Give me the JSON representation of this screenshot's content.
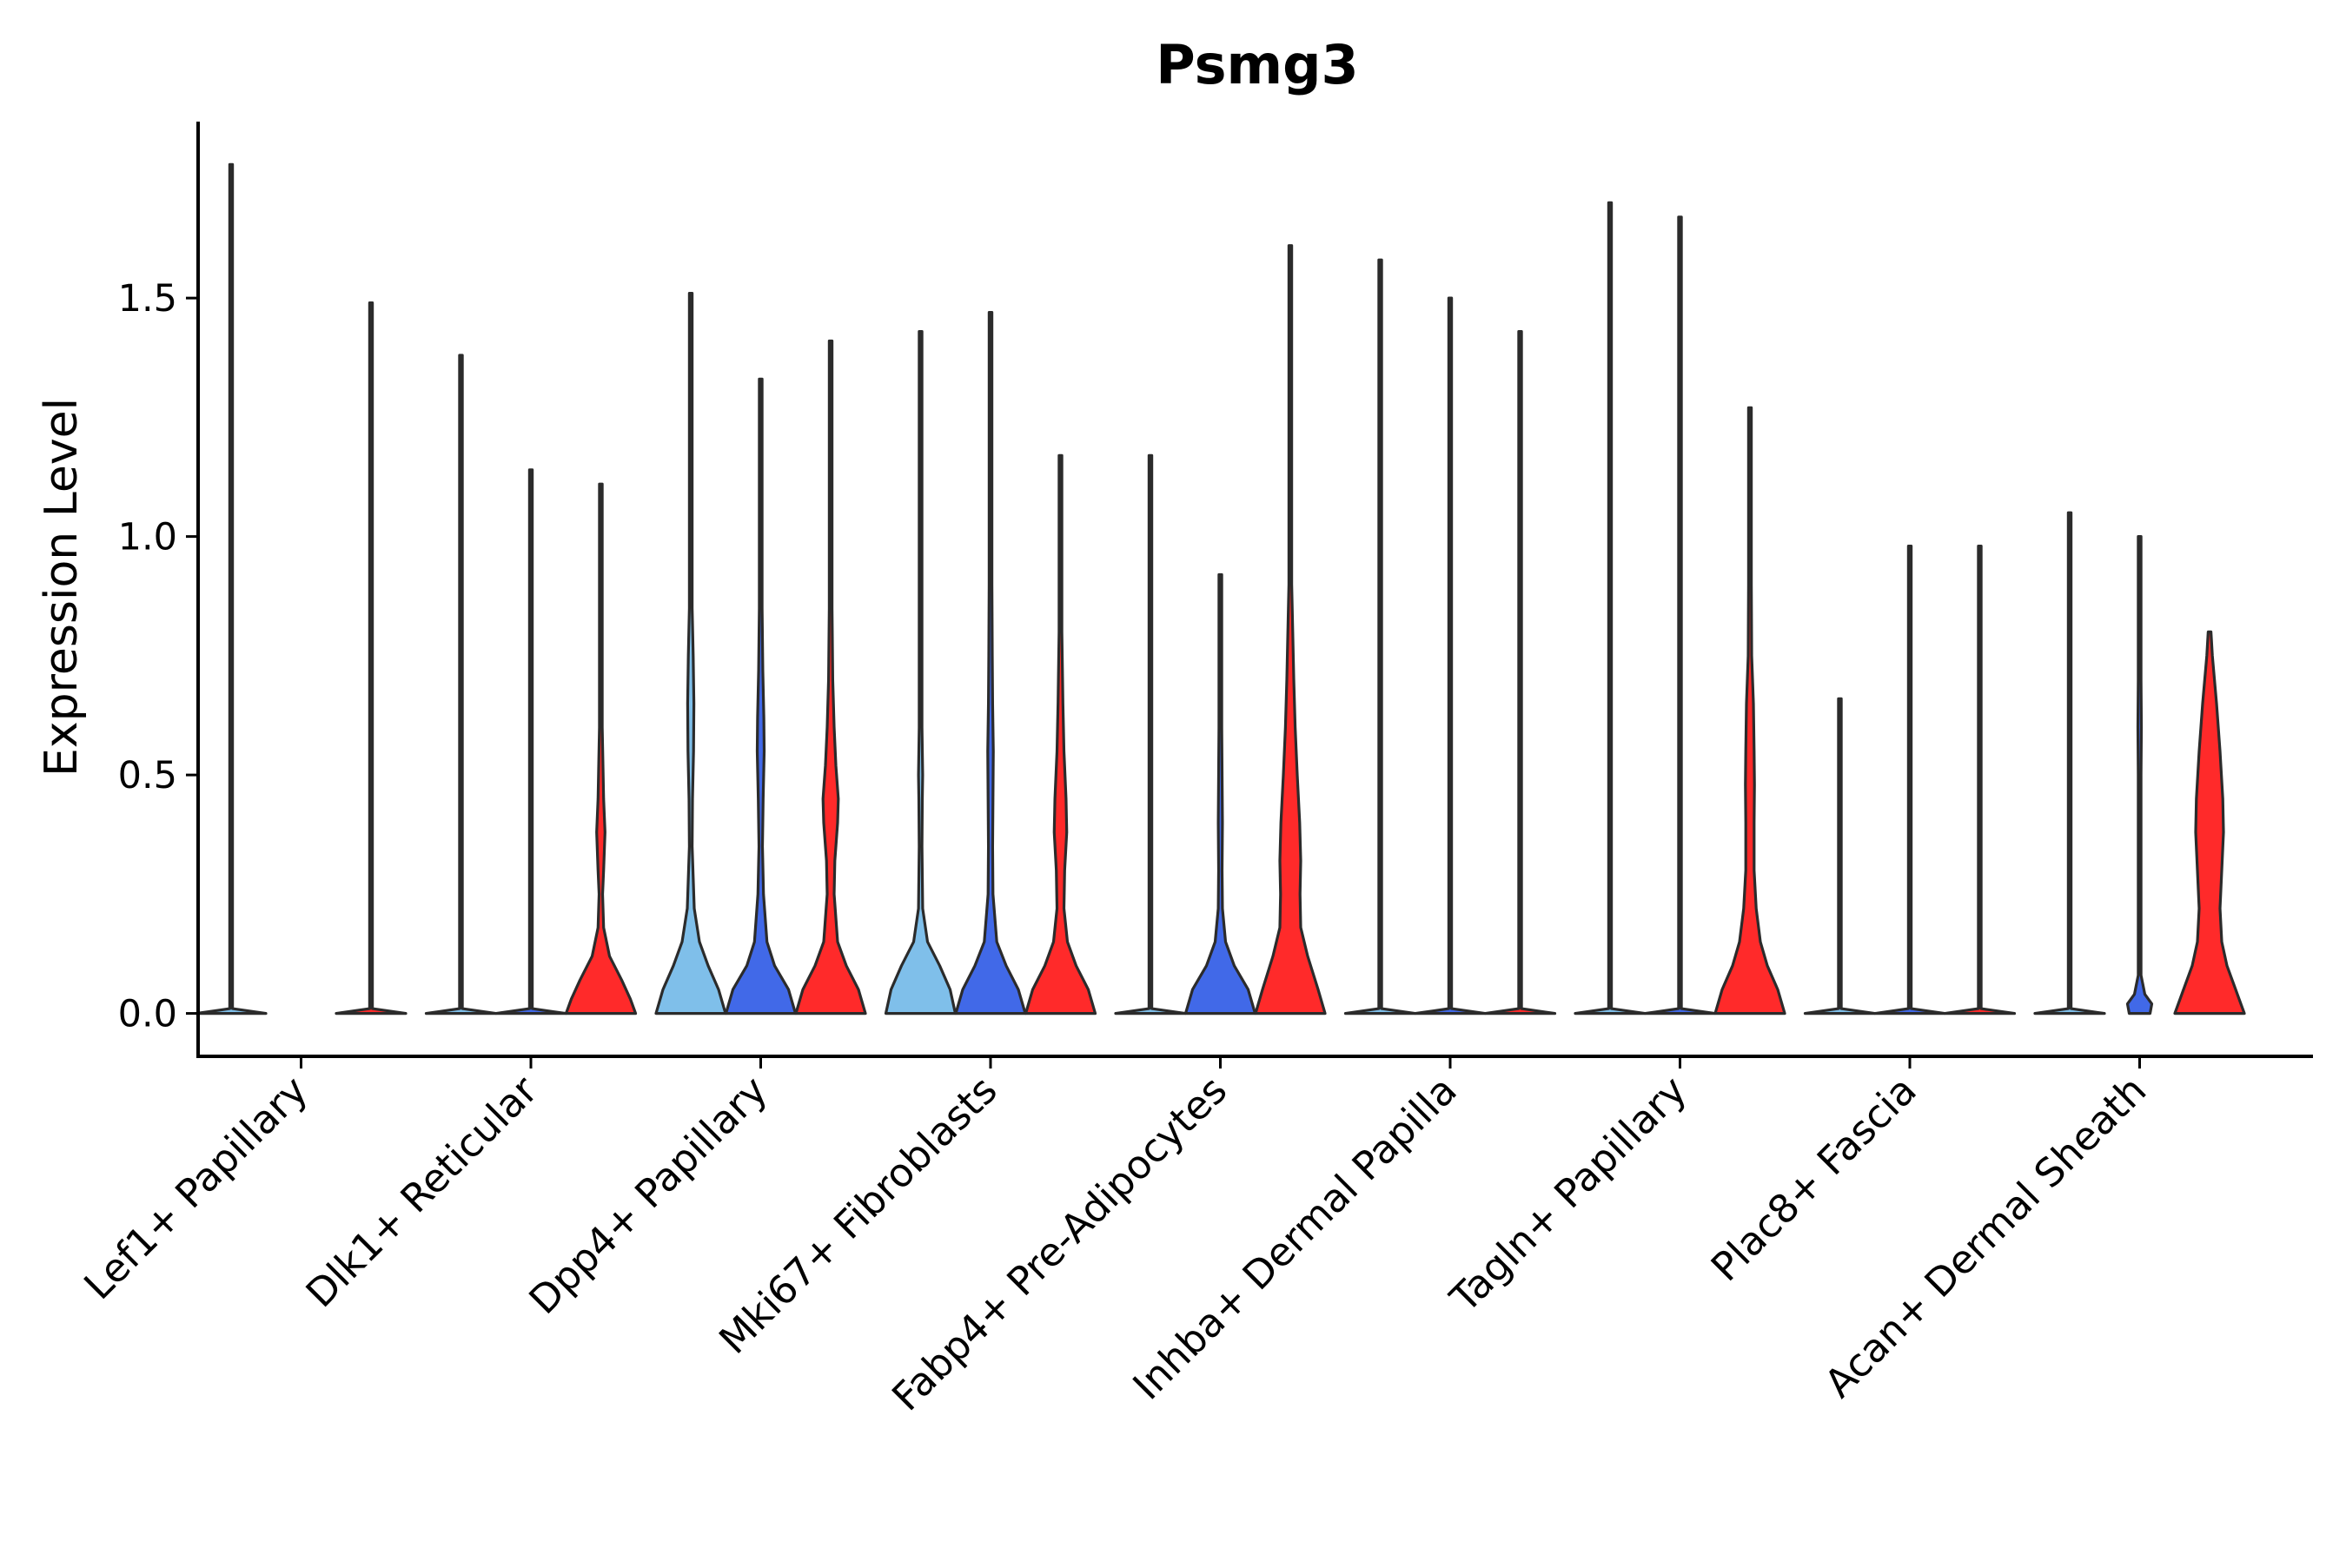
{
  "chart_data": {
    "type": "violin",
    "title": "Psmg3",
    "xlabel": "",
    "ylabel": "Expression Level",
    "ylim": [
      -0.09,
      1.87
    ],
    "yticks": [
      0.0,
      0.5,
      1.0,
      1.5
    ],
    "ytick_labels": [
      "0.0",
      "0.5",
      "1.0",
      "1.5"
    ],
    "grid": false,
    "legend": "none",
    "series_colors": [
      "#7fbfea",
      "#4169e8",
      "#ff2a2a"
    ],
    "categories": [
      {
        "label": "Lef1+ Papillary",
        "violins": [
          {
            "series": 0,
            "max": 1.78,
            "profile": [
              [
                0,
                1.0
              ],
              [
                0.01,
                0.02
              ],
              [
                0.05,
                0.0
              ]
            ]
          },
          {
            "series": 2,
            "max": 1.49,
            "profile": [
              [
                0,
                1.0
              ],
              [
                0.01,
                0.02
              ],
              [
                0.05,
                0.0
              ]
            ]
          }
        ]
      },
      {
        "label": "Dlk1+ Reticular",
        "violins": [
          {
            "series": 0,
            "max": 1.38,
            "profile": [
              [
                0,
                1.0
              ],
              [
                0.01,
                0.02
              ],
              [
                0.05,
                0.0
              ]
            ]
          },
          {
            "series": 1,
            "max": 1.14,
            "profile": [
              [
                0,
                1.0
              ],
              [
                0.01,
                0.02
              ],
              [
                0.05,
                0.0
              ]
            ]
          },
          {
            "series": 2,
            "max": 1.11,
            "profile": [
              [
                0,
                1.0
              ],
              [
                0.03,
                0.85
              ],
              [
                0.07,
                0.6
              ],
              [
                0.12,
                0.25
              ],
              [
                0.18,
                0.08
              ],
              [
                0.25,
                0.05
              ],
              [
                0.3,
                0.08
              ],
              [
                0.38,
                0.12
              ],
              [
                0.45,
                0.08
              ],
              [
                0.6,
                0.04
              ],
              [
                0.8,
                0.03
              ],
              [
                1.0,
                0.02
              ],
              [
                1.11,
                0.0
              ]
            ]
          }
        ]
      },
      {
        "label": "Dpp4+ Papillary",
        "violins": [
          {
            "series": 0,
            "max": 1.51,
            "profile": [
              [
                0,
                1.0
              ],
              [
                0.05,
                0.8
              ],
              [
                0.1,
                0.5
              ],
              [
                0.15,
                0.25
              ],
              [
                0.22,
                0.1
              ],
              [
                0.35,
                0.04
              ],
              [
                0.45,
                0.05
              ],
              [
                0.55,
                0.08
              ],
              [
                0.65,
                0.09
              ],
              [
                0.75,
                0.07
              ],
              [
                0.85,
                0.04
              ],
              [
                1.0,
                0.02
              ],
              [
                1.51,
                0.0
              ]
            ]
          },
          {
            "series": 1,
            "max": 1.33,
            "profile": [
              [
                0,
                1.0
              ],
              [
                0.05,
                0.8
              ],
              [
                0.1,
                0.4
              ],
              [
                0.15,
                0.18
              ],
              [
                0.25,
                0.08
              ],
              [
                0.35,
                0.05
              ],
              [
                0.45,
                0.07
              ],
              [
                0.55,
                0.1
              ],
              [
                0.62,
                0.09
              ],
              [
                0.72,
                0.06
              ],
              [
                0.85,
                0.03
              ],
              [
                1.0,
                0.02
              ],
              [
                1.33,
                0.0
              ]
            ]
          },
          {
            "series": 2,
            "max": 1.41,
            "profile": [
              [
                0,
                1.0
              ],
              [
                0.05,
                0.8
              ],
              [
                0.1,
                0.45
              ],
              [
                0.15,
                0.2
              ],
              [
                0.25,
                0.1
              ],
              [
                0.32,
                0.12
              ],
              [
                0.4,
                0.2
              ],
              [
                0.45,
                0.22
              ],
              [
                0.52,
                0.15
              ],
              [
                0.6,
                0.1
              ],
              [
                0.7,
                0.06
              ],
              [
                0.85,
                0.03
              ],
              [
                1.0,
                0.02
              ],
              [
                1.41,
                0.0
              ]
            ]
          }
        ]
      },
      {
        "label": "Mki67+ Fibroblasts",
        "violins": [
          {
            "series": 0,
            "max": 1.43,
            "profile": [
              [
                0,
                1.0
              ],
              [
                0.05,
                0.85
              ],
              [
                0.1,
                0.55
              ],
              [
                0.15,
                0.2
              ],
              [
                0.22,
                0.06
              ],
              [
                0.35,
                0.04
              ],
              [
                0.45,
                0.05
              ],
              [
                0.5,
                0.06
              ],
              [
                0.6,
                0.04
              ],
              [
                0.8,
                0.03
              ],
              [
                1.0,
                0.02
              ],
              [
                1.43,
                0.0
              ]
            ]
          },
          {
            "series": 1,
            "max": 1.47,
            "profile": [
              [
                0,
                1.0
              ],
              [
                0.05,
                0.8
              ],
              [
                0.1,
                0.45
              ],
              [
                0.15,
                0.18
              ],
              [
                0.25,
                0.07
              ],
              [
                0.35,
                0.06
              ],
              [
                0.45,
                0.07
              ],
              [
                0.55,
                0.08
              ],
              [
                0.65,
                0.06
              ],
              [
                0.75,
                0.05
              ],
              [
                0.9,
                0.03
              ],
              [
                1.0,
                0.02
              ],
              [
                1.47,
                0.0
              ]
            ]
          },
          {
            "series": 2,
            "max": 1.17,
            "profile": [
              [
                0,
                1.0
              ],
              [
                0.05,
                0.8
              ],
              [
                0.1,
                0.45
              ],
              [
                0.15,
                0.2
              ],
              [
                0.22,
                0.1
              ],
              [
                0.3,
                0.12
              ],
              [
                0.38,
                0.18
              ],
              [
                0.45,
                0.16
              ],
              [
                0.55,
                0.1
              ],
              [
                0.65,
                0.07
              ],
              [
                0.8,
                0.04
              ],
              [
                1.0,
                0.02
              ],
              [
                1.17,
                0.0
              ]
            ]
          }
        ]
      },
      {
        "label": "Fabp4+ Pre-Adipocytes",
        "violins": [
          {
            "series": 0,
            "max": 1.17,
            "profile": [
              [
                0,
                1.0
              ],
              [
                0.01,
                0.02
              ],
              [
                0.05,
                0.0
              ]
            ]
          },
          {
            "series": 1,
            "max": 0.92,
            "profile": [
              [
                0,
                1.0
              ],
              [
                0.05,
                0.8
              ],
              [
                0.1,
                0.4
              ],
              [
                0.15,
                0.15
              ],
              [
                0.22,
                0.06
              ],
              [
                0.3,
                0.05
              ],
              [
                0.4,
                0.06
              ],
              [
                0.5,
                0.05
              ],
              [
                0.6,
                0.03
              ],
              [
                0.75,
                0.02
              ],
              [
                0.92,
                0.0
              ]
            ]
          },
          {
            "series": 2,
            "max": 1.61,
            "profile": [
              [
                0,
                1.0
              ],
              [
                0.05,
                0.8
              ],
              [
                0.12,
                0.5
              ],
              [
                0.18,
                0.3
              ],
              [
                0.25,
                0.28
              ],
              [
                0.32,
                0.3
              ],
              [
                0.4,
                0.27
              ],
              [
                0.5,
                0.2
              ],
              [
                0.6,
                0.14
              ],
              [
                0.7,
                0.1
              ],
              [
                0.8,
                0.07
              ],
              [
                0.9,
                0.04
              ],
              [
                1.0,
                0.02
              ],
              [
                1.61,
                0.0
              ]
            ]
          }
        ]
      },
      {
        "label": "Inhba+ Dermal Papilla",
        "violins": [
          {
            "series": 0,
            "max": 1.58,
            "profile": [
              [
                0,
                1.0
              ],
              [
                0.01,
                0.02
              ],
              [
                0.05,
                0.0
              ]
            ]
          },
          {
            "series": 1,
            "max": 1.5,
            "profile": [
              [
                0,
                1.0
              ],
              [
                0.01,
                0.02
              ],
              [
                0.05,
                0.0
              ]
            ]
          },
          {
            "series": 2,
            "max": 1.43,
            "profile": [
              [
                0,
                1.0
              ],
              [
                0.01,
                0.02
              ],
              [
                0.05,
                0.0
              ]
            ]
          }
        ]
      },
      {
        "label": "Tagln+ Papillary",
        "violins": [
          {
            "series": 0,
            "max": 1.7,
            "profile": [
              [
                0,
                1.0
              ],
              [
                0.01,
                0.02
              ],
              [
                0.05,
                0.0
              ]
            ]
          },
          {
            "series": 1,
            "max": 1.67,
            "profile": [
              [
                0,
                1.0
              ],
              [
                0.01,
                0.02
              ],
              [
                0.05,
                0.0
              ]
            ]
          },
          {
            "series": 2,
            "max": 1.27,
            "profile": [
              [
                0,
                1.0
              ],
              [
                0.05,
                0.8
              ],
              [
                0.1,
                0.5
              ],
              [
                0.15,
                0.3
              ],
              [
                0.22,
                0.18
              ],
              [
                0.3,
                0.12
              ],
              [
                0.4,
                0.12
              ],
              [
                0.48,
                0.13
              ],
              [
                0.55,
                0.12
              ],
              [
                0.65,
                0.1
              ],
              [
                0.75,
                0.05
              ],
              [
                0.9,
                0.03
              ],
              [
                1.0,
                0.02
              ],
              [
                1.27,
                0.0
              ]
            ]
          }
        ]
      },
      {
        "label": "Plac8+ Fascia",
        "violins": [
          {
            "series": 0,
            "max": 0.66,
            "profile": [
              [
                0,
                1.0
              ],
              [
                0.01,
                0.02
              ],
              [
                0.05,
                0.0
              ]
            ]
          },
          {
            "series": 1,
            "max": 0.98,
            "profile": [
              [
                0,
                1.0
              ],
              [
                0.01,
                0.02
              ],
              [
                0.05,
                0.0
              ]
            ]
          },
          {
            "series": 2,
            "max": 0.98,
            "profile": [
              [
                0,
                1.0
              ],
              [
                0.01,
                0.02
              ],
              [
                0.05,
                0.0
              ]
            ]
          }
        ]
      },
      {
        "label": "Acan+ Dermal Sheath",
        "violins": [
          {
            "series": 0,
            "max": 1.05,
            "profile": [
              [
                0,
                1.0
              ],
              [
                0.01,
                0.02
              ],
              [
                0.05,
                0.0
              ]
            ]
          },
          {
            "series": 1,
            "max": 1.0,
            "profile": [
              [
                0,
                0.3
              ],
              [
                0.02,
                0.35
              ],
              [
                0.04,
                0.15
              ],
              [
                0.08,
                0.03
              ],
              [
                0.2,
                0.02
              ],
              [
                0.3,
                0.04
              ],
              [
                0.4,
                0.02
              ],
              [
                0.5,
                0.03
              ],
              [
                0.6,
                0.05
              ],
              [
                0.7,
                0.03
              ],
              [
                0.8,
                0.02
              ],
              [
                1.0,
                0.0
              ]
            ]
          },
          {
            "series": 2,
            "max": 0.8,
            "profile": [
              [
                0,
                1.0
              ],
              [
                0.05,
                0.75
              ],
              [
                0.1,
                0.5
              ],
              [
                0.15,
                0.35
              ],
              [
                0.22,
                0.3
              ],
              [
                0.3,
                0.35
              ],
              [
                0.38,
                0.4
              ],
              [
                0.45,
                0.38
              ],
              [
                0.55,
                0.3
              ],
              [
                0.65,
                0.2
              ],
              [
                0.75,
                0.08
              ],
              [
                0.8,
                0.0
              ]
            ]
          }
        ]
      }
    ]
  }
}
